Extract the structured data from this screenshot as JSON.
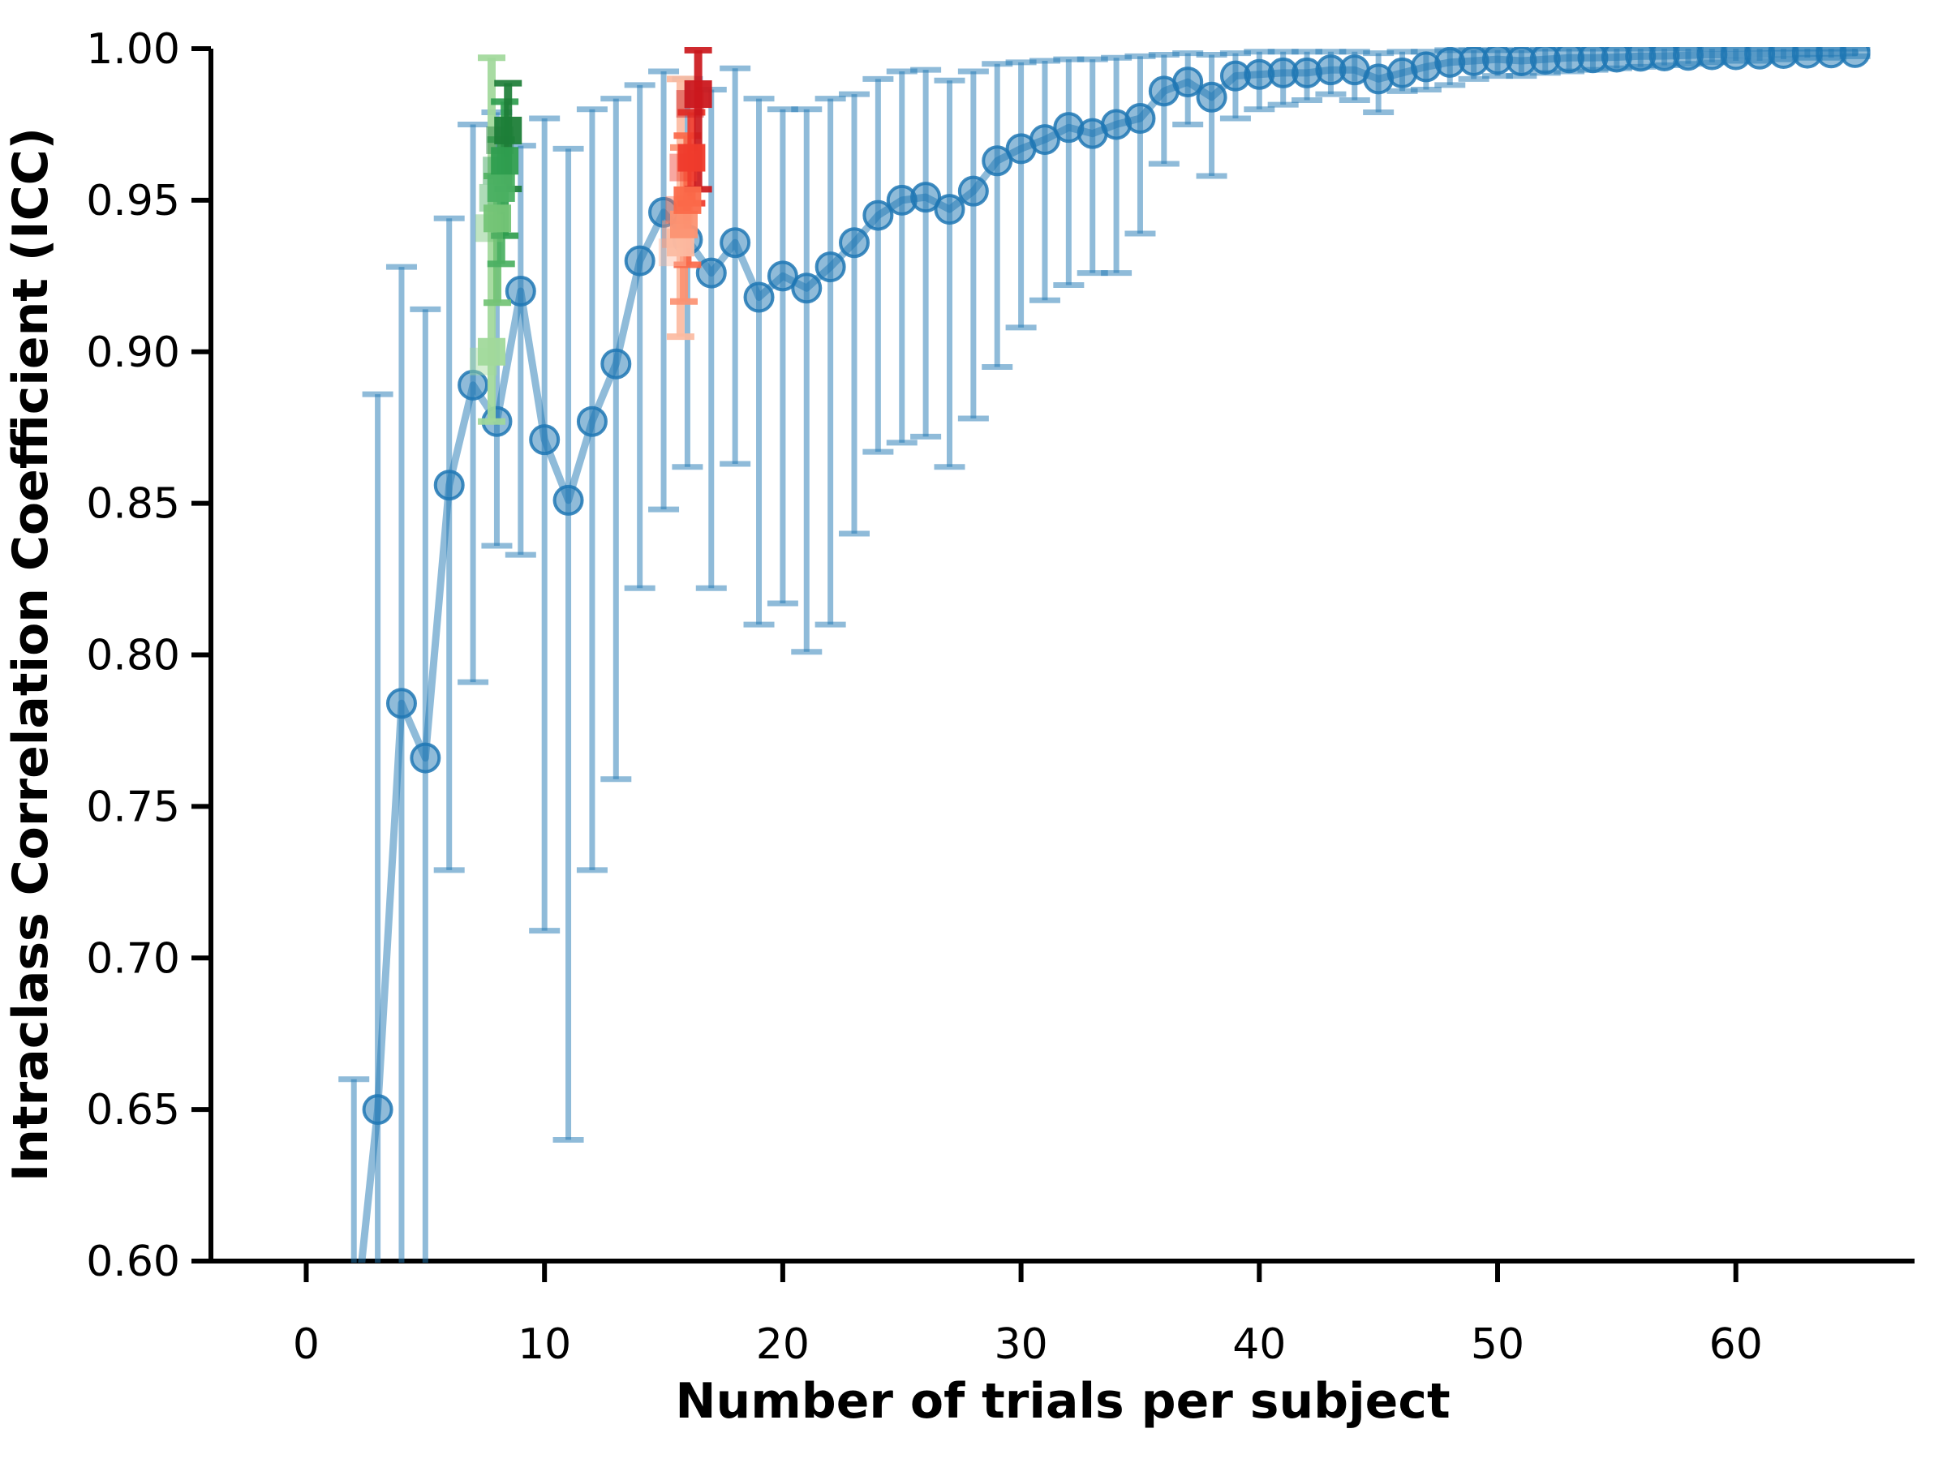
{
  "chart_data": {
    "type": "line",
    "title": "",
    "xlabel": "Number of trials per subject",
    "ylabel": "Intraclass Correlation Coefficient (ICC)",
    "xlim": [
      -4,
      67.5
    ],
    "ylim": [
      0.6,
      1.0
    ],
    "grid": false,
    "legend": "none",
    "xticks": {
      "values": [
        0,
        10,
        20,
        30,
        40,
        50,
        60
      ],
      "labels": [
        "0",
        "10",
        "20",
        "30",
        "40",
        "50",
        "60"
      ]
    },
    "yticks": {
      "values": [
        0.6,
        0.65,
        0.7,
        0.75,
        0.8,
        0.85,
        0.9,
        0.95,
        1.0
      ],
      "labels": [
        "0.60",
        "0.65",
        "0.70",
        "0.75",
        "0.80",
        "0.85",
        "0.90",
        "0.95",
        "1.00"
      ]
    },
    "colors": {
      "blue": "#1f77b4",
      "axis": "#000000",
      "greens": [
        "#a1d99b",
        "#74c476",
        "#4bb062",
        "#2f9e4f",
        "#1e7e38"
      ],
      "reds": [
        "#fcbba1",
        "#fc9272",
        "#fb6a4a",
        "#ef3b2c",
        "#cb181d"
      ]
    },
    "blue_series": {
      "name": "ICC vs number of trials (bootstrapped, with error bars)",
      "columns": [
        "trials",
        "icc",
        "ci_low",
        "ci_high"
      ],
      "points": [
        [
          2,
          0.575,
          0.54,
          0.66
        ],
        [
          3,
          0.65,
          0.55,
          0.886
        ],
        [
          4,
          0.784,
          0.55,
          0.928
        ],
        [
          5,
          0.766,
          0.56,
          0.914
        ],
        [
          6,
          0.856,
          0.729,
          0.944
        ],
        [
          7,
          0.889,
          0.791,
          0.975
        ],
        [
          8,
          0.877,
          0.836,
          0.979
        ],
        [
          9,
          0.92,
          0.833,
          0.968
        ],
        [
          10,
          0.871,
          0.709,
          0.977
        ],
        [
          11,
          0.851,
          0.64,
          0.967
        ],
        [
          12,
          0.877,
          0.729,
          0.98
        ],
        [
          13,
          0.896,
          0.759,
          0.9835
        ],
        [
          14,
          0.93,
          0.822,
          0.988
        ],
        [
          15,
          0.946,
          0.848,
          0.9925
        ],
        [
          16,
          0.937,
          0.862,
          0.99
        ],
        [
          17,
          0.926,
          0.822,
          0.9865
        ],
        [
          18,
          0.936,
          0.863,
          0.9935
        ],
        [
          19,
          0.918,
          0.81,
          0.9835
        ],
        [
          20,
          0.925,
          0.817,
          0.98
        ],
        [
          21,
          0.921,
          0.801,
          0.98
        ],
        [
          22,
          0.928,
          0.81,
          0.9835
        ],
        [
          23,
          0.936,
          0.84,
          0.985
        ],
        [
          24,
          0.945,
          0.867,
          0.99
        ],
        [
          25,
          0.95,
          0.87,
          0.9925
        ],
        [
          26,
          0.951,
          0.872,
          0.993
        ],
        [
          27,
          0.947,
          0.862,
          0.9895
        ],
        [
          28,
          0.953,
          0.878,
          0.9925
        ],
        [
          29,
          0.963,
          0.895,
          0.995
        ],
        [
          30,
          0.967,
          0.908,
          0.9955
        ],
        [
          31,
          0.97,
          0.917,
          0.996
        ],
        [
          32,
          0.974,
          0.922,
          0.9965
        ],
        [
          33,
          0.972,
          0.926,
          0.9965
        ],
        [
          34,
          0.975,
          0.926,
          0.997
        ],
        [
          35,
          0.977,
          0.939,
          0.9975
        ],
        [
          36,
          0.986,
          0.962,
          0.998
        ],
        [
          37,
          0.989,
          0.975,
          0.9985
        ],
        [
          38,
          0.984,
          0.958,
          0.998
        ],
        [
          39,
          0.991,
          0.977,
          0.9985
        ],
        [
          40,
          0.9915,
          0.98,
          0.999
        ],
        [
          41,
          0.992,
          0.9815,
          0.999
        ],
        [
          42,
          0.992,
          0.983,
          0.999
        ],
        [
          43,
          0.993,
          0.985,
          0.999
        ],
        [
          44,
          0.993,
          0.983,
          0.999
        ],
        [
          45,
          0.99,
          0.979,
          0.9985
        ],
        [
          46,
          0.992,
          0.986,
          0.999
        ],
        [
          47,
          0.994,
          0.9865,
          0.999
        ],
        [
          48,
          0.9955,
          0.988,
          0.9995
        ],
        [
          49,
          0.996,
          0.99,
          0.9995
        ],
        [
          50,
          0.9965,
          0.991,
          0.9995
        ],
        [
          51,
          0.996,
          0.991,
          0.9995
        ],
        [
          52,
          0.9965,
          0.992,
          1.0
        ],
        [
          53,
          0.997,
          0.9925,
          1.0
        ],
        [
          54,
          0.997,
          0.993,
          1.0
        ],
        [
          55,
          0.9972,
          0.9935,
          1.0
        ],
        [
          56,
          0.9975,
          0.994,
          1.0
        ],
        [
          57,
          0.9976,
          0.9945,
          1.0
        ],
        [
          58,
          0.9978,
          0.995,
          1.0
        ],
        [
          59,
          0.998,
          0.9955,
          1.0
        ],
        [
          60,
          0.998,
          0.996,
          1.0
        ],
        [
          61,
          0.9982,
          0.996,
          1.0
        ],
        [
          62,
          0.9984,
          0.9965,
          1.0
        ],
        [
          63,
          0.9985,
          0.997,
          1.0
        ],
        [
          64,
          0.9986,
          0.997,
          1.0
        ],
        [
          65,
          0.9987,
          0.9975,
          1.0
        ]
      ]
    },
    "green_cluster": {
      "name": "square markers near n=8 (light to dark green)",
      "columns": [
        "trials",
        "icc",
        "ci_low",
        "ci_high",
        "color"
      ],
      "points": [
        [
          7.78,
          0.9,
          0.877,
          0.997,
          "#a1d99b"
        ],
        [
          8.02,
          0.944,
          0.9162,
          0.958,
          "#74c476"
        ],
        [
          8.18,
          0.954,
          0.929,
          0.97,
          "#4bb062"
        ],
        [
          8.33,
          0.963,
          0.9383,
          0.9825,
          "#2f9e4f"
        ],
        [
          8.47,
          0.973,
          0.9537,
          0.9886,
          "#1e7e38"
        ]
      ]
    },
    "red_cluster": {
      "name": "square markers near n=16 (light to dark red)",
      "columns": [
        "trials",
        "icc",
        "ci_low",
        "ci_high",
        "color"
      ],
      "points": [
        [
          15.71,
          0.936,
          0.905,
          0.99,
          "#fcbba1"
        ],
        [
          15.85,
          0.942,
          0.9166,
          0.9674,
          "#fc9272"
        ],
        [
          16.0,
          0.95,
          0.9287,
          0.9713,
          "#fb6a4a"
        ],
        [
          16.17,
          0.964,
          0.949,
          0.979,
          "#ef3b2c"
        ],
        [
          16.45,
          0.985,
          0.9536,
          0.9995,
          "#cb181d"
        ]
      ]
    }
  }
}
